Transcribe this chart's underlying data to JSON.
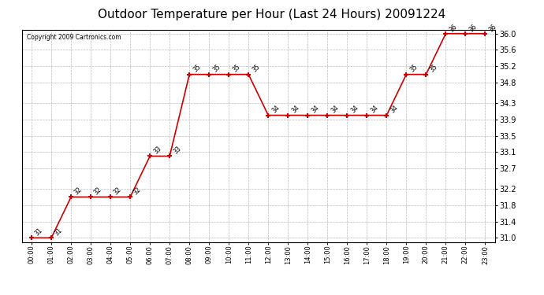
{
  "title": "Outdoor Temperature per Hour (Last 24 Hours) 20091224",
  "copyright": "Copyright 2009 Cartronics.com",
  "hours": [
    "00:00",
    "01:00",
    "02:00",
    "03:00",
    "04:00",
    "05:00",
    "06:00",
    "07:00",
    "08:00",
    "09:00",
    "10:00",
    "11:00",
    "12:00",
    "13:00",
    "14:00",
    "15:00",
    "16:00",
    "17:00",
    "18:00",
    "19:00",
    "20:00",
    "21:00",
    "22:00",
    "23:00"
  ],
  "temps": [
    31,
    31,
    32,
    32,
    32,
    32,
    33,
    33,
    35,
    35,
    35,
    35,
    34,
    34,
    34,
    34,
    34,
    34,
    34,
    35,
    35,
    36,
    36,
    36
  ],
  "ylim_min": 31.0,
  "ylim_max": 36.0,
  "yticks": [
    31.0,
    31.4,
    31.8,
    32.2,
    32.7,
    33.1,
    33.5,
    33.9,
    34.3,
    34.8,
    35.2,
    35.6,
    36.0
  ],
  "line_color": "#cc0000",
  "marker_color": "#cc0000",
  "bg_color": "#ffffff",
  "grid_color": "#bbbbbb",
  "title_fontsize": 11,
  "annotation_fontsize": 5.5,
  "xtick_fontsize": 6,
  "ytick_fontsize": 7
}
